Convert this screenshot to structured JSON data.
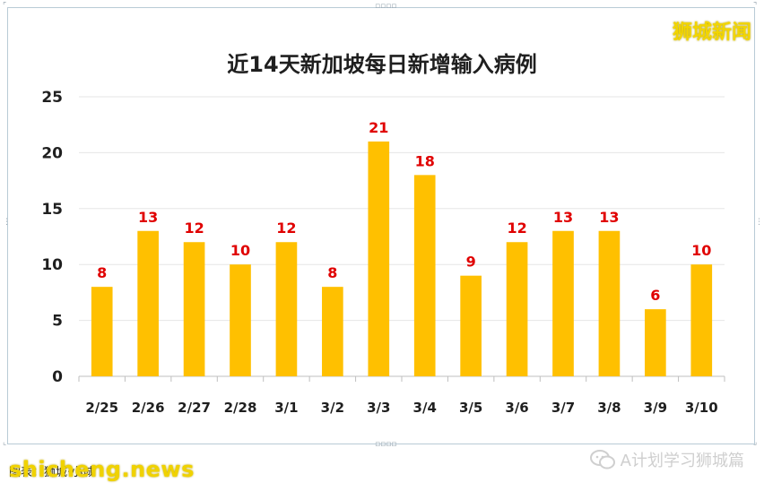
{
  "brand": "狮城新闻",
  "footer": {
    "source_text": "图表：狮城·小城",
    "watermark": "shicheng.news",
    "account": "A计划学习狮城篇"
  },
  "icons": {
    "wechat": "wechat-icon"
  },
  "colors": {
    "bar": "#FFC000",
    "data_label": "#E00000",
    "axis_text": "#1F1F1F",
    "grid": "#E6E6E6",
    "brand": "#F2D500"
  },
  "chart_data": {
    "type": "bar",
    "title": "近14天新加坡每日新增输入病例",
    "categories": [
      "2/25",
      "2/26",
      "2/27",
      "2/28",
      "3/1",
      "3/2",
      "3/3",
      "3/4",
      "3/5",
      "3/6",
      "3/7",
      "3/8",
      "3/9",
      "3/10"
    ],
    "values": [
      8,
      13,
      12,
      10,
      12,
      8,
      21,
      18,
      9,
      12,
      13,
      13,
      6,
      10
    ],
    "xlabel": "",
    "ylabel": "",
    "ylim": [
      0,
      25
    ],
    "yticks": [
      0,
      5,
      10,
      15,
      20,
      25
    ],
    "grid": true,
    "legend": "none",
    "data_labels": true
  }
}
